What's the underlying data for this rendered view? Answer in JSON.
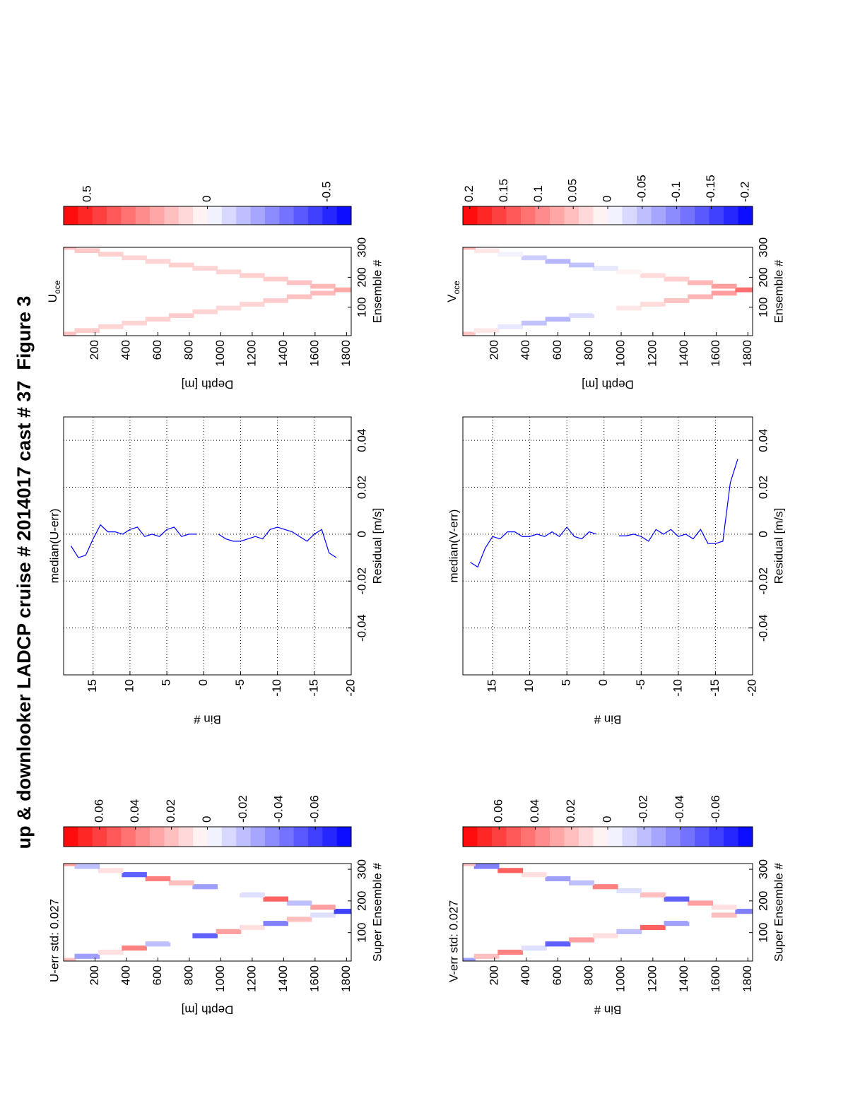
{
  "title": "up & downlooker LADCP cruise # 2014017 cast # 37  Figure 3",
  "chart_data": [
    {
      "type": "heatmap",
      "title": "U-err std: 0.027",
      "xlabel": "Super Ensemble #",
      "ylabel": "Depth [m]",
      "xlim": [
        10,
        318
      ],
      "ylim": [
        1830,
        0
      ],
      "xticks": [
        100,
        200,
        300
      ],
      "yticks": [
        200,
        400,
        600,
        800,
        1000,
        1200,
        1400,
        1600,
        1800
      ],
      "x": [
        12,
        25,
        38,
        51,
        64,
        77,
        90,
        103,
        116,
        129,
        142,
        155,
        167,
        180,
        193,
        206,
        219,
        232,
        245,
        257,
        270,
        283,
        296,
        309,
        318
      ],
      "y": [
        0,
        150,
        300,
        450,
        600,
        750,
        900,
        1050,
        1200,
        1350,
        1500,
        1650,
        1800,
        1650,
        1500,
        1350,
        1200,
        1050,
        900,
        750,
        600,
        450,
        300,
        150,
        0
      ],
      "values": [
        0.02,
        -0.03,
        0.01,
        0.04,
        -0.02,
        0,
        -0.05,
        0.03,
        0.01,
        -0.04,
        0.02,
        -0.01,
        -0.06,
        0.03,
        -0.02,
        0.05,
        -0.01,
        0,
        -0.03,
        0.02,
        0.04,
        -0.05,
        0.01,
        -0.02,
        0.03
      ],
      "clim": [
        -0.08,
        0.08
      ],
      "cticks": [
        0.06,
        0.04,
        0.02,
        0,
        -0.02,
        -0.04,
        -0.06
      ]
    },
    {
      "type": "line",
      "title": "median(U-err)",
      "xlabel": "Residual [m/s]",
      "ylabel": "Bin #",
      "color": "#0000ff",
      "grid": true,
      "xlim": [
        -0.06,
        0.05
      ],
      "ylim": [
        -20,
        19
      ],
      "xticks": [
        -0.04,
        -0.02,
        0,
        0.02,
        0.04
      ],
      "yticks": [
        15,
        10,
        5,
        0,
        -5,
        -10,
        -15,
        -20
      ],
      "bins": [
        18,
        17,
        16,
        15,
        14,
        13,
        12,
        11,
        10,
        9,
        8,
        7,
        6,
        5,
        4,
        3,
        2,
        1,
        0,
        -1,
        -2,
        -3,
        -4,
        -5,
        -6,
        -7,
        -8,
        -9,
        -10,
        -11,
        -12,
        -13,
        -14,
        -15,
        -16,
        -17,
        -18
      ],
      "values": [
        -0.005,
        -0.01,
        -0.009,
        -0.002,
        0.004,
        0.001,
        0.001,
        0,
        0.002,
        0.003,
        -0.001,
        0,
        -0.001,
        0.002,
        0.003,
        -0.001,
        0,
        0,
        null,
        null,
        0,
        -0.002,
        -0.003,
        -0.003,
        -0.002,
        -0.001,
        -0.002,
        0.002,
        0.003,
        0.002,
        0.001,
        -0.001,
        -0.003,
        0,
        0.002,
        -0.008,
        -0.01
      ]
    },
    {
      "type": "heatmap",
      "title": "U",
      "title_sub": "oce",
      "xlabel": "Ensemble #",
      "ylabel": "Depth [m]",
      "xlim": [
        5,
        300
      ],
      "ylim": [
        1830,
        0
      ],
      "xticks": [
        100,
        200,
        300
      ],
      "yticks": [
        200,
        400,
        600,
        800,
        1000,
        1200,
        1400,
        1600,
        1800
      ],
      "x": [
        10,
        22,
        35,
        47,
        60,
        72,
        85,
        97,
        110,
        122,
        135,
        147,
        158,
        170,
        182,
        194,
        206,
        218,
        230,
        241,
        253,
        265,
        277,
        289,
        300
      ],
      "y": [
        0,
        150,
        300,
        450,
        600,
        750,
        900,
        1050,
        1200,
        1350,
        1500,
        1650,
        1800,
        1650,
        1500,
        1350,
        1200,
        1050,
        900,
        750,
        600,
        450,
        300,
        150,
        0
      ],
      "values": [
        0.15,
        0.12,
        0.1,
        0.1,
        0.11,
        0.12,
        0.1,
        0.09,
        0.1,
        0.12,
        0.14,
        0.16,
        0.2,
        0.17,
        0.14,
        0.12,
        0.11,
        0.1,
        0.1,
        0.11,
        0.1,
        0.1,
        0.11,
        0.13,
        0.16
      ],
      "clim": [
        -0.6,
        0.6
      ],
      "cticks": [
        0.5,
        0,
        -0.5
      ]
    },
    {
      "type": "heatmap",
      "title": "V-err std: 0.027",
      "xlabel": "Super Ensemble #",
      "ylabel": "Bin #",
      "xlim": [
        10,
        318
      ],
      "ylim": [
        1830,
        0
      ],
      "xticks": [
        100,
        200,
        300
      ],
      "yticks": [
        200,
        400,
        600,
        800,
        1000,
        1200,
        1400,
        1600,
        1800
      ],
      "x": [
        12,
        25,
        38,
        51,
        64,
        77,
        90,
        103,
        116,
        129,
        142,
        155,
        167,
        180,
        193,
        206,
        219,
        232,
        245,
        257,
        270,
        283,
        296,
        309,
        318
      ],
      "y": [
        0,
        150,
        300,
        450,
        600,
        750,
        900,
        1050,
        1200,
        1350,
        1500,
        1650,
        1800,
        1650,
        1500,
        1350,
        1200,
        1050,
        900,
        750,
        600,
        450,
        300,
        150,
        0
      ],
      "values": [
        -0.03,
        0.02,
        0.04,
        -0.01,
        -0.05,
        0.03,
        0.01,
        -0.02,
        0.05,
        -0.03,
        0,
        0.02,
        -0.04,
        0.01,
        0.03,
        -0.05,
        0.02,
        -0.01,
        0.04,
        -0.02,
        -0.03,
        0.01,
        0.05,
        -0.04,
        0.02
      ],
      "clim": [
        -0.08,
        0.08
      ],
      "cticks": [
        0.06,
        0.04,
        0.02,
        0,
        -0.02,
        -0.04,
        -0.06
      ]
    },
    {
      "type": "line",
      "title": "median(V-err)",
      "xlabel": "Residual [m/s]",
      "ylabel": "Bin #",
      "color": "#0000ff",
      "grid": true,
      "xlim": [
        -0.06,
        0.05
      ],
      "ylim": [
        -20,
        19
      ],
      "xticks": [
        -0.04,
        -0.02,
        0,
        0.02,
        0.04
      ],
      "yticks": [
        15,
        10,
        5,
        0,
        -5,
        -10,
        -15,
        -20
      ],
      "bins": [
        18,
        17,
        16,
        15,
        14,
        13,
        12,
        11,
        10,
        9,
        8,
        7,
        6,
        5,
        4,
        3,
        2,
        1,
        0,
        -1,
        -2,
        -3,
        -4,
        -5,
        -6,
        -7,
        -8,
        -9,
        -10,
        -11,
        -12,
        -13,
        -14,
        -15,
        -16,
        -17,
        -18
      ],
      "values": [
        -0.012,
        -0.014,
        -0.006,
        -0.001,
        -0.002,
        0.001,
        0.001,
        -0.001,
        -0.001,
        0,
        -0.001,
        0.001,
        -0.001,
        0.003,
        -0.001,
        -0.002,
        0.001,
        0,
        null,
        null,
        -0.0007,
        -0.0007,
        0,
        -0.001,
        -0.003,
        0.002,
        0,
        0.002,
        -0.001,
        0,
        -0.002,
        0.002,
        -0.004,
        -0.004,
        -0.003,
        0.022,
        0.032
      ]
    },
    {
      "type": "heatmap",
      "title": "V",
      "title_sub": "oce",
      "xlabel": "Ensemble #",
      "ylabel": "Depth [m]",
      "xlim": [
        5,
        300
      ],
      "ylim": [
        1830,
        0
      ],
      "xticks": [
        100,
        200,
        300
      ],
      "yticks": [
        200,
        400,
        600,
        800,
        1000,
        1200,
        1400,
        1600,
        1800
      ],
      "x": [
        10,
        22,
        35,
        47,
        60,
        72,
        85,
        97,
        110,
        122,
        135,
        147,
        158,
        170,
        182,
        194,
        206,
        218,
        230,
        241,
        253,
        265,
        277,
        289,
        300
      ],
      "y": [
        0,
        150,
        300,
        450,
        600,
        750,
        900,
        1050,
        1200,
        1350,
        1500,
        1650,
        1800,
        1650,
        1500,
        1350,
        1200,
        1050,
        900,
        750,
        600,
        450,
        300,
        150,
        0
      ],
      "values": [
        0.05,
        0.02,
        -0.02,
        -0.05,
        -0.06,
        -0.03,
        0,
        0.02,
        0.03,
        0.05,
        0.06,
        0.08,
        0.12,
        0.08,
        0.06,
        0.04,
        0.03,
        0.01,
        -0.02,
        -0.05,
        -0.06,
        -0.04,
        -0.01,
        0.02,
        0.06
      ],
      "clim": [
        -0.21,
        0.21
      ],
      "cticks": [
        0.2,
        0.15,
        0.1,
        0.05,
        0,
        -0.05,
        -0.1,
        -0.15,
        -0.2
      ]
    }
  ]
}
